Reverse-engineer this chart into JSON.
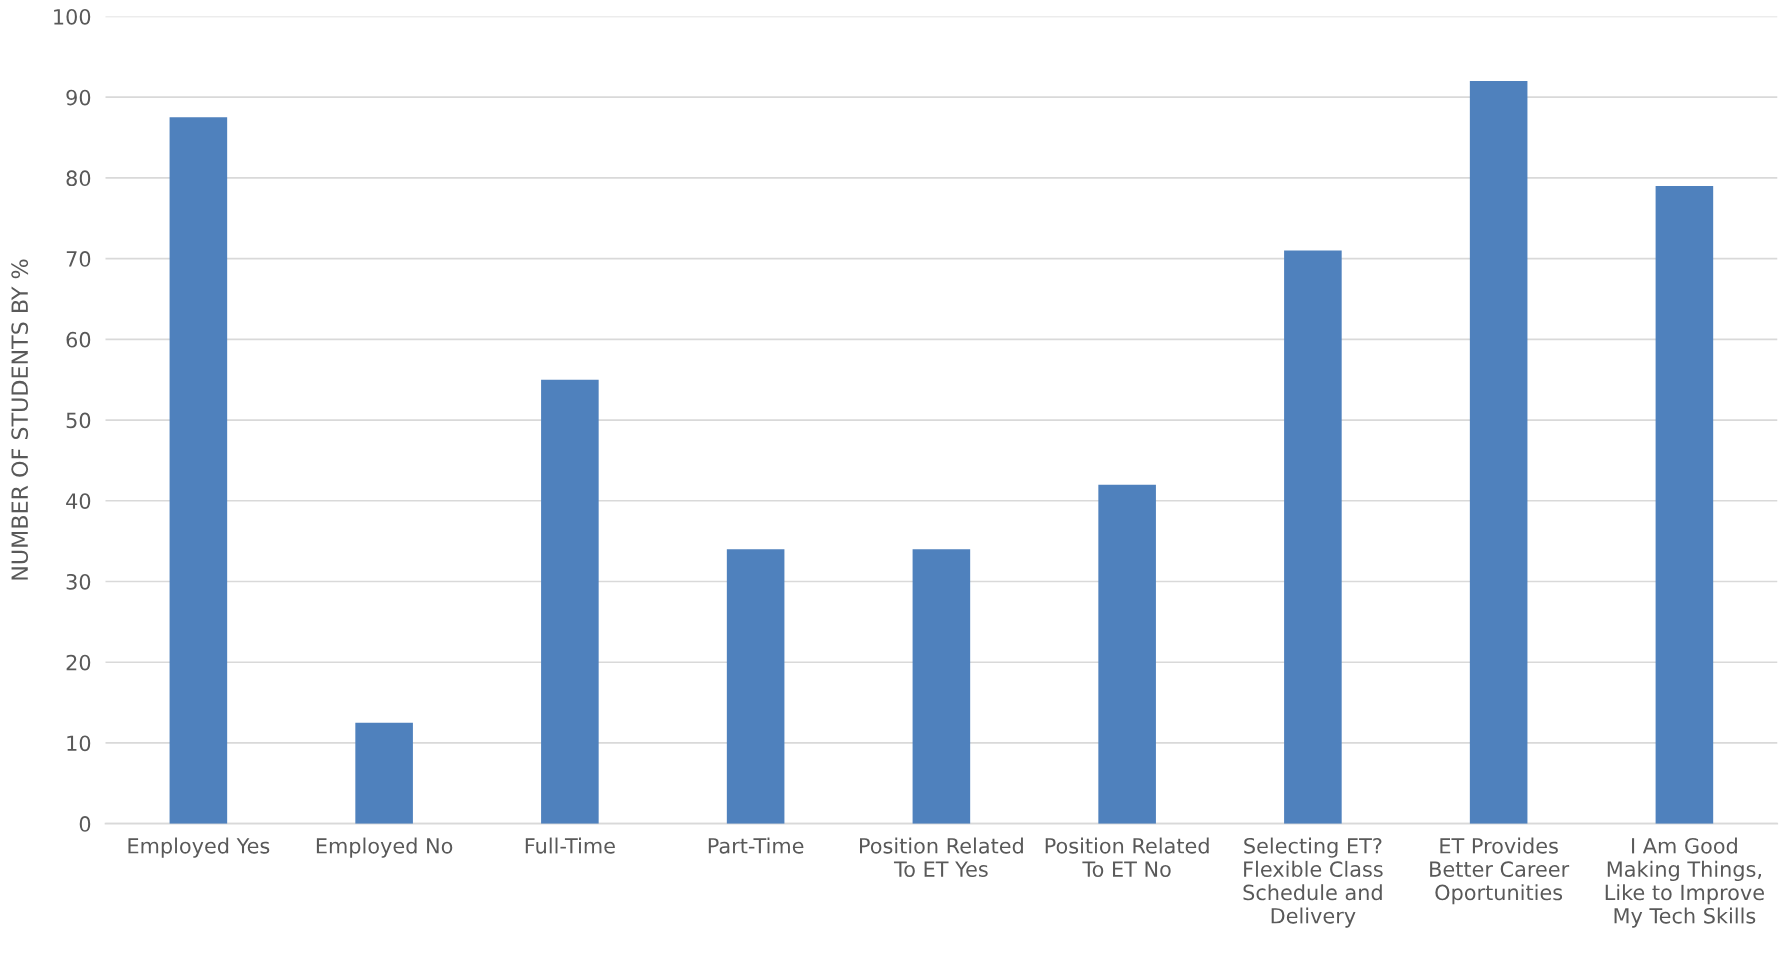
{
  "chart_data": {
    "type": "bar",
    "ylabel": "NUMBER OF STUDENTS BY %",
    "categories": [
      "Employed Yes",
      "Employed No",
      "Full-Time",
      "Part-Time",
      "Position Related\nTo ET Yes",
      "Position Related\nTo ET No",
      "Selecting ET?\nFlexible Class\nSchedule and\nDelivery",
      "ET Provides\nBetter Career\nOportunities",
      "I Am Good\nMaking Things,\nLike to Improve\nMy Tech Skills"
    ],
    "values": [
      87.5,
      12.5,
      55,
      34,
      34,
      42,
      71,
      92,
      79
    ],
    "color": "#4f81bd",
    "ylim": [
      0,
      100
    ],
    "yticks": [
      0,
      10,
      20,
      30,
      40,
      50,
      60,
      70,
      80,
      90,
      100
    ],
    "grid": "y"
  }
}
